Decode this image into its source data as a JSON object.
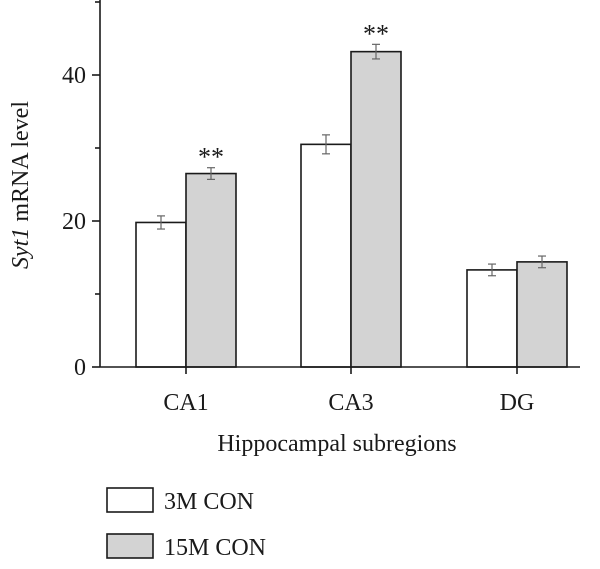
{
  "chart_data": {
    "type": "bar",
    "categories": [
      "CA1",
      "CA3",
      "DG"
    ],
    "series": [
      {
        "name": "3M CON",
        "color": "#ffffff",
        "values": [
          19.8,
          30.5,
          13.3
        ],
        "errors": [
          0.9,
          1.3,
          0.8
        ]
      },
      {
        "name": "15M CON",
        "color": "#d3d3d3",
        "values": [
          26.5,
          43.2,
          14.4
        ],
        "errors": [
          0.8,
          1.0,
          0.8
        ],
        "significance": [
          "**",
          "**",
          ""
        ]
      }
    ],
    "xlabel": "Hippocampal subregions",
    "ylabel": {
      "italic": "Syt1",
      "rest": " mRNA level"
    },
    "ylim": [
      0,
      50
    ],
    "yticks": [
      0,
      20,
      40
    ],
    "grid": false,
    "legend": "bottom-left"
  }
}
